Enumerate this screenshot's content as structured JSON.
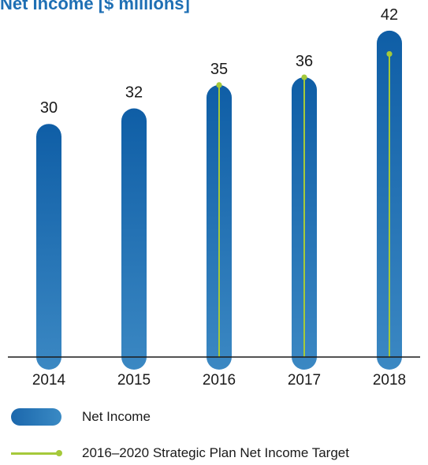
{
  "chart_data": {
    "type": "bar",
    "title": "Net Income [$ millions]",
    "categories": [
      "2014",
      "2015",
      "2016",
      "2017",
      "2018"
    ],
    "series": [
      {
        "name": "Net Income",
        "values": [
          30,
          32,
          35,
          36,
          42
        ]
      },
      {
        "name": "2016–2020 Strategic Plan Net Income Target",
        "values": [
          null,
          null,
          35,
          36,
          39
        ]
      }
    ],
    "data_labels": [
      "30",
      "32",
      "35",
      "36",
      "42"
    ],
    "xlabel": "",
    "ylabel": "",
    "ylim": [
      0,
      45
    ],
    "grid": false,
    "legend_position": "bottom",
    "colors": {
      "bar_top": "#0f5ea6",
      "bar_bottom": "#3b88c3",
      "target": "#a5c93a",
      "title": "#1e6fb4"
    }
  },
  "legend": {
    "bar_label": "Net Income",
    "line_label": "2016–2020 Strategic Plan Net Income Target"
  }
}
